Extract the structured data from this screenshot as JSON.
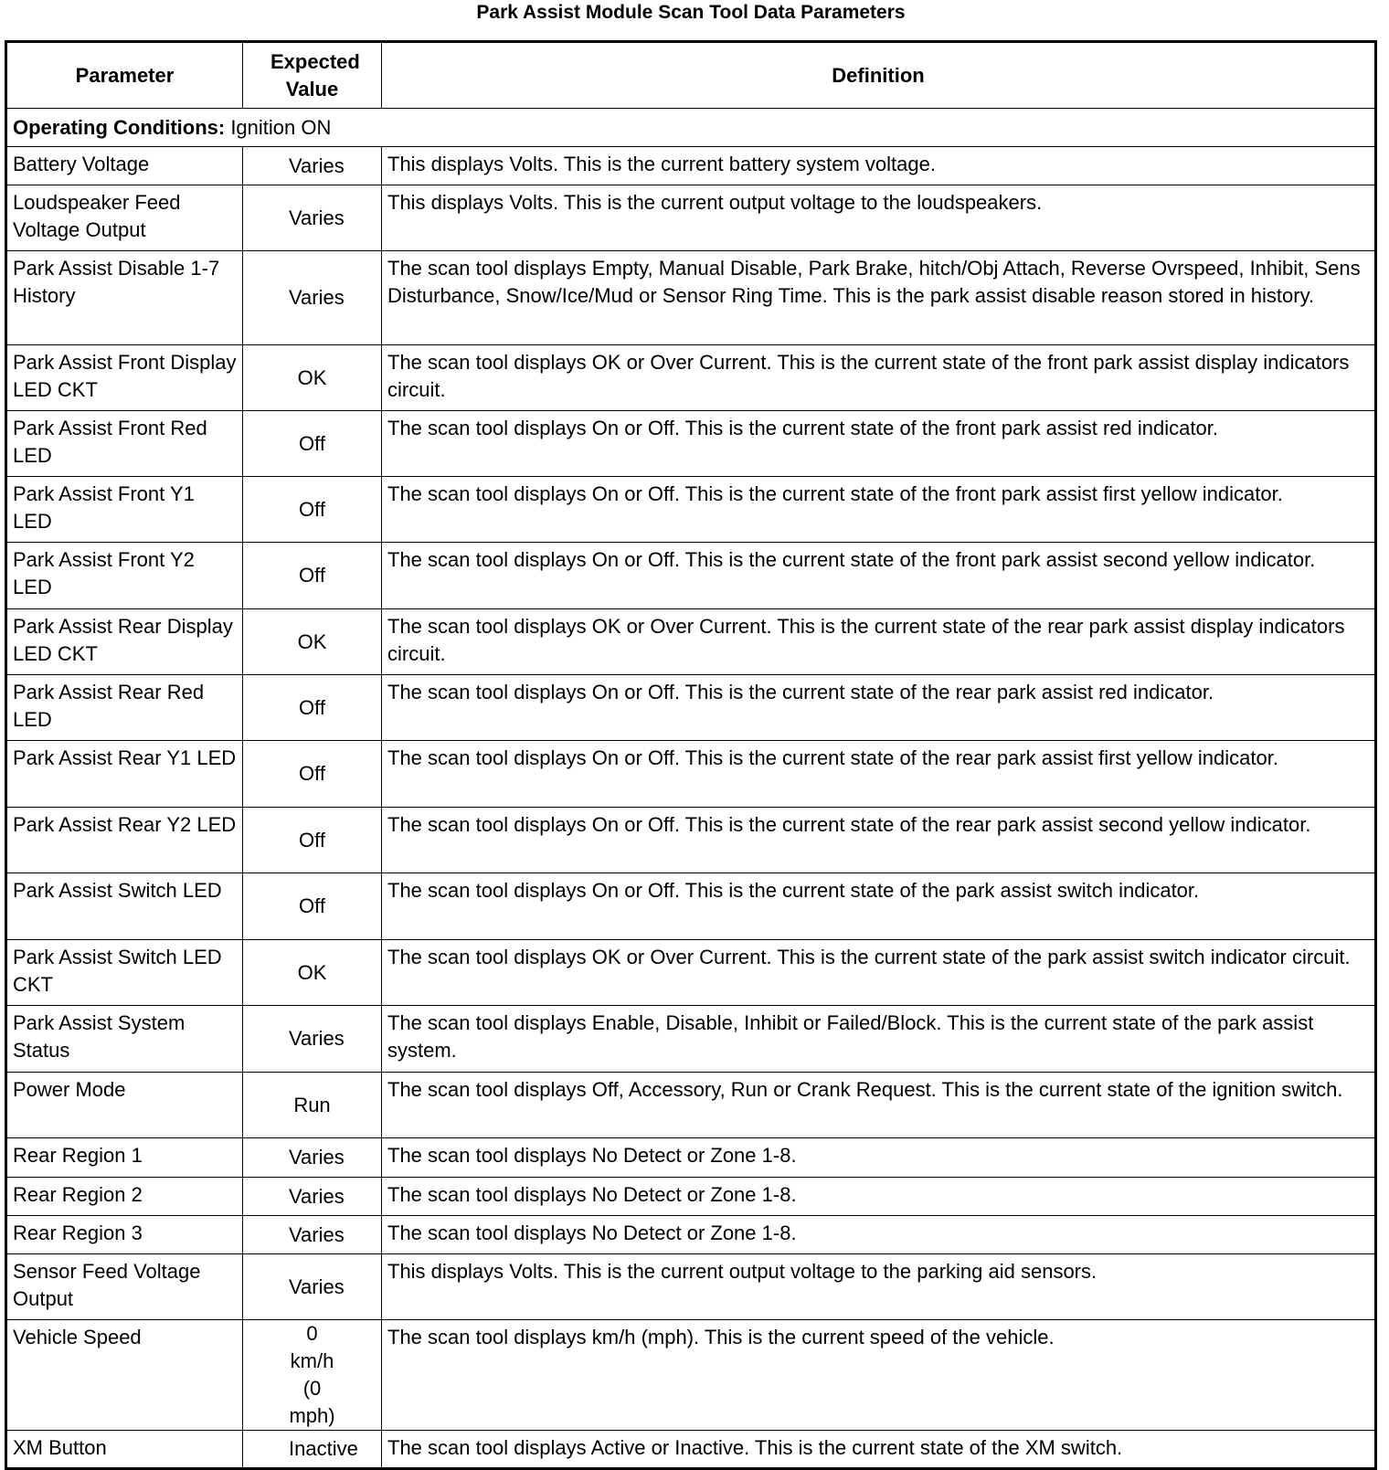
{
  "title": "Park Assist Module Scan Tool Data Parameters",
  "headers": {
    "parameter": "Parameter",
    "expected_value": "Expected Value",
    "definition": "Definition"
  },
  "operating_conditions": {
    "label": "Operating Conditions:",
    "value": " Ignition ON"
  },
  "rows": [
    {
      "parameter": "Battery Voltage",
      "value": "Varies",
      "definition": "This displays Volts. This is the current battery system voltage."
    },
    {
      "parameter": "Loudspeaker Feed Voltage Output",
      "value": "Varies",
      "definition": "This displays Volts. This is the current output voltage to the loudspeakers."
    },
    {
      "parameter": "Park Assist Disable 1-7 History",
      "value": "Varies",
      "definition": "The scan tool displays Empty, Manual Disable, Park Brake, hitch/Obj Attach, Reverse Ovrspeed, Inhibit, Sens Disturbance, Snow/Ice/Mud or Sensor Ring Time. This is the park assist disable reason stored in history."
    },
    {
      "parameter": "Park Assist Front Display LED CKT",
      "value": "OK",
      "definition": "The scan tool displays OK or Over Current. This is the current state of the front park assist display indicators circuit."
    },
    {
      "parameter": "Park Assist Front Red LED",
      "value": "Off",
      "definition": "The scan tool displays On or Off. This is the current state of the front park assist red indicator."
    },
    {
      "parameter": "Park Assist Front Y1 LED",
      "value": "Off",
      "definition": "The scan tool displays On or Off. This is the current state of the front park assist first yellow indicator."
    },
    {
      "parameter": "Park Assist Front Y2 LED",
      "value": "Off",
      "definition": "The scan tool displays On or Off. This is the current state of the front park assist second yellow indicator."
    },
    {
      "parameter": "Park Assist Rear Display LED CKT",
      "value": "OK",
      "definition": "The scan tool displays OK or Over Current. This is the current state of the rear park assist display indicators circuit."
    },
    {
      "parameter": "Park Assist Rear Red LED",
      "value": "Off",
      "definition": "The scan tool displays On or Off. This is the current state of the rear park assist red indicator."
    },
    {
      "parameter": "Park Assist Rear Y1 LED",
      "value": "Off",
      "definition": "The scan tool displays On or Off. This is the current state of the rear park assist first yellow indicator."
    },
    {
      "parameter": "Park Assist Rear Y2 LED",
      "value": "Off",
      "definition": "The scan tool displays On or Off. This is the current state of the rear park assist second yellow indicator."
    },
    {
      "parameter": "Park Assist Switch LED",
      "value": "Off",
      "definition": "The scan tool displays On or Off. This is the current state of the park assist switch indicator."
    },
    {
      "parameter": "Park Assist Switch LED CKT",
      "value": "OK",
      "definition": "The scan tool displays OK or Over Current. This is the current state of the park assist switch indicator circuit."
    },
    {
      "parameter": "Park Assist System Status",
      "value": "Varies",
      "definition": "The scan tool displays Enable, Disable, Inhibit or Failed/Block. This is the current state of the park assist system."
    },
    {
      "parameter": "Power Mode",
      "value": "Run",
      "definition": "The scan tool displays Off, Accessory, Run or Crank Request. This is the current state of the ignition switch."
    },
    {
      "parameter": "Rear Region 1",
      "value": "Varies",
      "definition": "The scan tool displays No Detect or Zone 1-8."
    },
    {
      "parameter": "Rear Region 2",
      "value": "Varies",
      "definition": "The scan tool displays No Detect or Zone 1-8."
    },
    {
      "parameter": "Rear Region 3",
      "value": "Varies",
      "definition": "The scan tool displays No Detect or Zone 1-8."
    },
    {
      "parameter": "Sensor Feed Voltage Output",
      "value": "Varies",
      "definition": "This displays Volts. This is the current output voltage to the parking aid sensors."
    },
    {
      "parameter": "Vehicle Speed",
      "value": "0 km/h (0 mph)",
      "definition": "The scan tool displays km/h (mph). This is the current speed of the vehicle."
    },
    {
      "parameter": "XM Button",
      "value": "Inactive",
      "definition": "The scan tool displays Active or Inactive. This is the current state of the XM switch."
    }
  ]
}
